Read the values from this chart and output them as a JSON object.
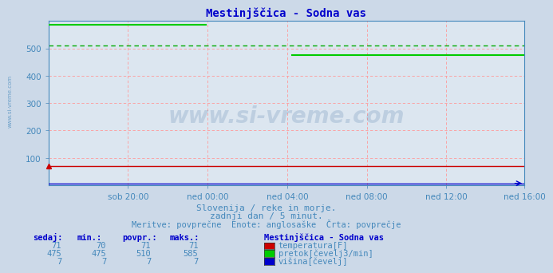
{
  "title": "Mestinjščica - Sodna vas",
  "background_color": "#ccd9e8",
  "plot_bg_color": "#dce6f0",
  "grid_color_major": "#ff9999",
  "grid_color_minor": "#ffcccc",
  "temp_color": "#cc0000",
  "flow_color": "#00cc00",
  "height_color": "#0000cc",
  "avg_flow_color": "#00aa00",
  "text_color": "#4488bb",
  "title_color": "#0000cc",
  "ylim": [
    0,
    600
  ],
  "yticks": [
    100,
    200,
    300,
    400,
    500
  ],
  "xlim": [
    0,
    287
  ],
  "xtick_positions": [
    48,
    96,
    144,
    192,
    240,
    287
  ],
  "xtick_labels": [
    "sob 20:00",
    "ned 00:00",
    "ned 04:00",
    "ned 08:00",
    "ned 12:00",
    "ned 16:00"
  ],
  "temp_value": 71,
  "flow_high": 585,
  "flow_low": 475,
  "flow_drop_idx": 96,
  "flow_resume_idx": 147,
  "flow_avg": 510,
  "height_value": 7,
  "total_points": 288,
  "subtitle1": "Slovenija / reke in morje.",
  "subtitle2": "zadnji dan / 5 minut.",
  "subtitle3": "Meritve: povprečne  Enote: anglosaške  Črta: povprečje",
  "legend_title": "Mestinjščica - Sodna vas",
  "legend_items": [
    {
      "label": "temperatura[F]",
      "color": "#cc0000"
    },
    {
      "label": "pretok[čevelj3/min]",
      "color": "#00cc00"
    },
    {
      "label": "višina[čevelj]",
      "color": "#0000cc"
    }
  ],
  "table_headers": [
    "sedaj:",
    "min.:",
    "povpr.:",
    "maks.:"
  ],
  "table_data": [
    [
      "71",
      "70",
      "71",
      "71"
    ],
    [
      "475",
      "475",
      "510",
      "585"
    ],
    [
      "7",
      "7",
      "7",
      "7"
    ]
  ],
  "watermark": "www.si-vreme.com",
  "side_label": "www.si-vreme.com"
}
